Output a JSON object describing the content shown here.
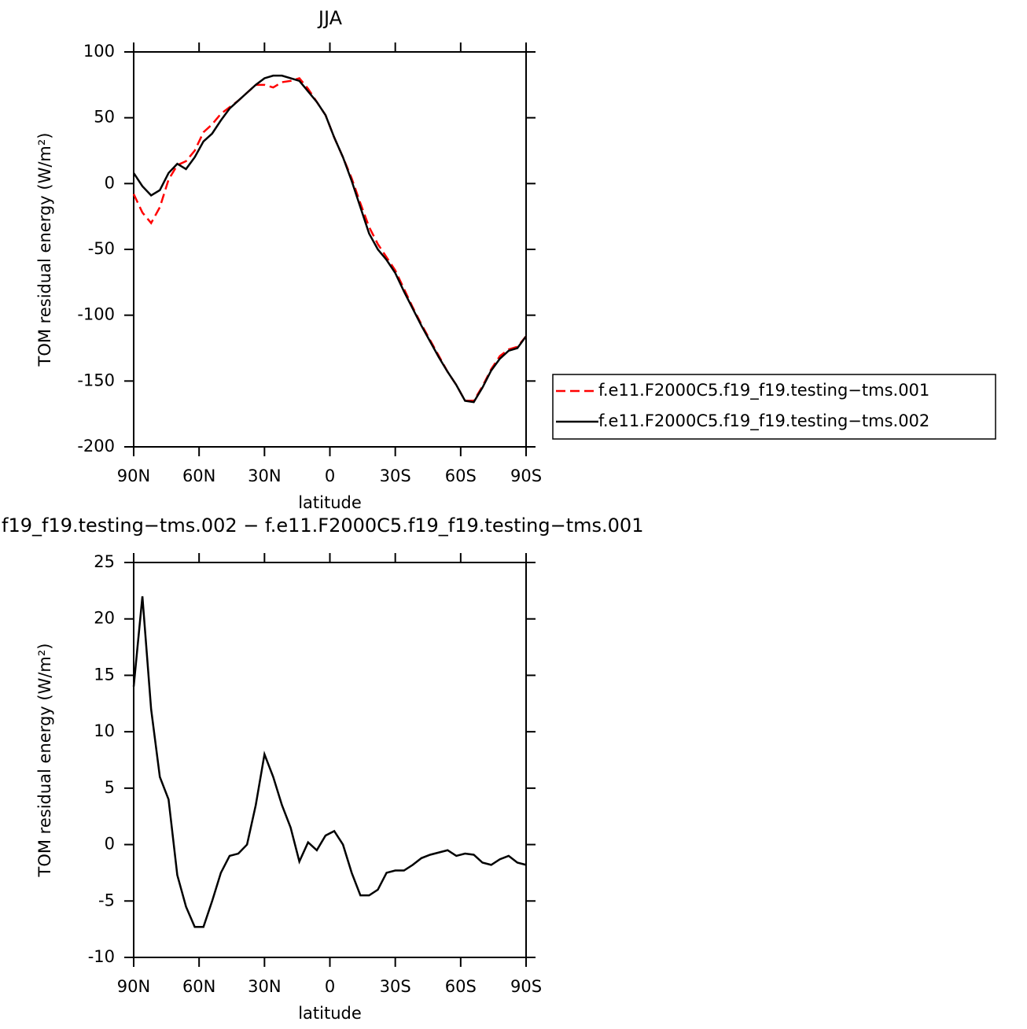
{
  "chart_data": [
    {
      "type": "line",
      "title": "JJA",
      "xlabel": "latitude",
      "ylabel": "TOM residual energy (W/m²)",
      "x": [
        90,
        86,
        82,
        78,
        74,
        70,
        66,
        62,
        58,
        54,
        50,
        46,
        42,
        38,
        34,
        30,
        26,
        22,
        18,
        14,
        10,
        6,
        2,
        -2,
        -6,
        -10,
        -14,
        -18,
        -22,
        -26,
        -30,
        -34,
        -38,
        -42,
        -46,
        -50,
        -54,
        -58,
        -62,
        -66,
        -70,
        -74,
        -78,
        -82,
        -86,
        -90
      ],
      "series": [
        {
          "name": "f.e11.F2000C5.f19_f19.testing−tms.001",
          "color": "#ff0000",
          "dashed": true,
          "values": [
            -8,
            -22,
            -30,
            -18,
            3,
            14,
            17,
            25,
            39,
            45,
            53,
            58,
            63,
            69,
            75,
            75,
            73,
            77,
            78,
            80,
            72,
            62,
            52,
            35,
            20,
            4,
            -15,
            -33,
            -46,
            -56,
            -66,
            -80,
            -94,
            -107,
            -119,
            -131,
            -143,
            -153,
            -165,
            -165,
            -154,
            -141,
            -131,
            -126,
            -124,
            -116
          ]
        },
        {
          "name": "f.e11.F2000C5.f19_f19.testing−tms.002",
          "color": "#000000",
          "dashed": false,
          "values": [
            8,
            -2,
            -9,
            -5,
            8,
            15,
            11,
            20,
            32,
            38,
            48,
            57,
            63,
            69,
            75,
            80,
            82,
            82,
            80,
            78,
            70,
            62,
            52,
            35,
            20,
            2,
            -18,
            -38,
            -50,
            -58,
            -68,
            -82,
            -95,
            -108,
            -120,
            -132,
            -143,
            -153,
            -165,
            -166,
            -155,
            -142,
            -133,
            -127,
            -125,
            -116
          ]
        }
      ],
      "xlim": [
        90,
        -90
      ],
      "xticks": [
        {
          "value": 90,
          "label": "90N"
        },
        {
          "value": 60,
          "label": "60N"
        },
        {
          "value": 30,
          "label": "30N"
        },
        0,
        {
          "value": -30,
          "label": "30S"
        },
        {
          "value": -60,
          "label": "60S"
        },
        {
          "value": -90,
          "label": "90S"
        }
      ],
      "ylim": [
        -200,
        100
      ],
      "yticks": [
        100,
        50,
        0,
        -50,
        -100,
        -150,
        -200
      ],
      "legend": "right"
    },
    {
      "type": "line",
      "title": "f19_f19.testing−tms.002 − f.e11.F2000C5.f19_f19.testing−tms.001",
      "xlabel": "latitude",
      "ylabel": "TOM residual energy (W/m²)",
      "x": [
        90,
        86,
        82,
        78,
        74,
        70,
        66,
        62,
        58,
        54,
        50,
        46,
        42,
        38,
        34,
        30,
        26,
        22,
        18,
        14,
        10,
        6,
        2,
        -2,
        -6,
        -10,
        -14,
        -18,
        -22,
        -26,
        -30,
        -34,
        -38,
        -42,
        -46,
        -50,
        -54,
        -58,
        -62,
        -66,
        -70,
        -74,
        -78,
        -82,
        -86,
        -90
      ],
      "color": "#000000",
      "values": [
        14,
        22,
        12,
        6,
        4,
        -2.7,
        -5.5,
        -7.3,
        -7.3,
        -5,
        -2.5,
        -1,
        -0.8,
        0,
        3.5,
        8,
        6,
        3.5,
        1.5,
        -1.5,
        0.2,
        -0.5,
        0.8,
        1.2,
        0,
        -2.5,
        -4.5,
        -4.5,
        -4,
        -2.5,
        -2.3,
        -2.3,
        -1.8,
        -1.2,
        -0.9,
        -0.7,
        -0.5,
        -1,
        -0.8,
        -0.9,
        -1.6,
        -1.8,
        -1.3,
        -1,
        -1.6,
        -1.8
      ],
      "xlim": [
        90,
        -90
      ],
      "xticks": [
        {
          "value": 90,
          "label": "90N"
        },
        {
          "value": 60,
          "label": "60N"
        },
        {
          "value": 30,
          "label": "30N"
        },
        0,
        {
          "value": -30,
          "label": "30S"
        },
        {
          "value": -60,
          "label": "60S"
        },
        {
          "value": -90,
          "label": "90S"
        }
      ],
      "ylim": [
        -10,
        25
      ],
      "yticks": [
        25,
        20,
        15,
        10,
        5,
        0,
        -5,
        -10
      ]
    }
  ]
}
